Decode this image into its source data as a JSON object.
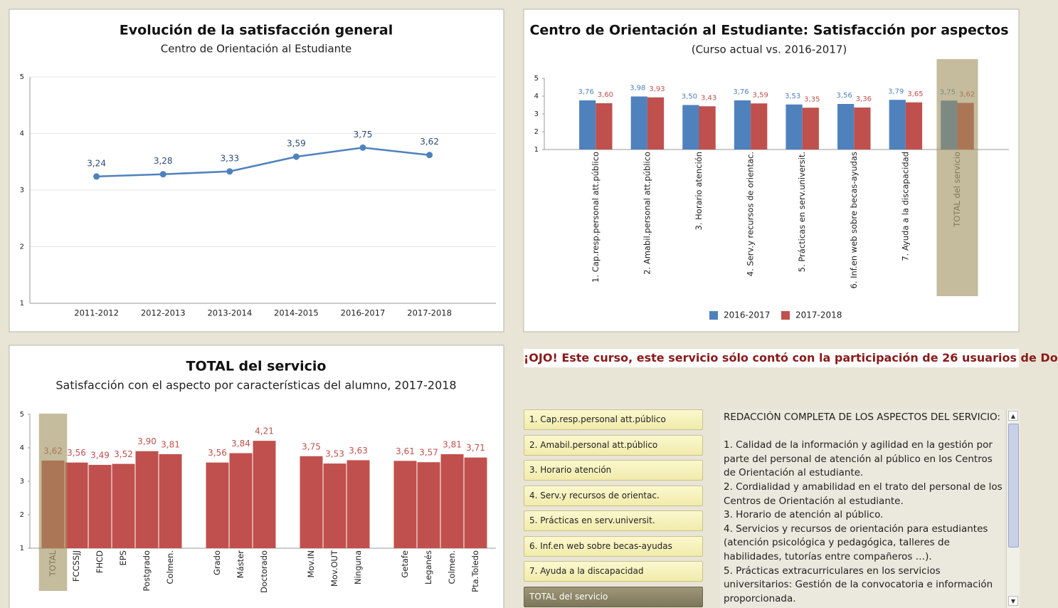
{
  "chart_data": [
    {
      "type": "line",
      "title": "Evolución de la satisfacción general",
      "subtitle": "Centro de Orientación al Estudiante",
      "categories": [
        "2011-2012",
        "2012-2013",
        "2013-2014",
        "2014-2015",
        "2016-2017",
        "2017-2018"
      ],
      "values": [
        3.24,
        3.28,
        3.33,
        3.59,
        3.75,
        3.62
      ],
      "value_labels": [
        "3,24",
        "3,28",
        "3,33",
        "3,59",
        "3,75",
        "3,62"
      ],
      "color": "#4f81bd",
      "ylim": [
        1,
        5
      ],
      "yticks": [
        1,
        2,
        3,
        4,
        5
      ],
      "grid": true
    },
    {
      "type": "bar",
      "title": "Centro de Orientación al Estudiante: Satisfacción por aspectos",
      "subtitle": "(Curso actual vs. 2016-2017)",
      "categories": [
        "1. Cap.resp.personal att.público",
        "2. Amabil.personal att.público",
        "3. Horario atención",
        "4. Serv.y recursos de orientac.",
        "5. Prácticas en serv.universit.",
        "6. Inf.en web sobre becas-ayudas",
        "7. Ayuda a la discapacidad",
        "TOTAL del servicio"
      ],
      "series": [
        {
          "name": "2016-2017",
          "color": "#4f81bd",
          "values": [
            3.76,
            3.98,
            3.5,
            3.76,
            3.53,
            3.56,
            3.79,
            3.75
          ],
          "value_labels": [
            "3,76",
            "3,98",
            "3,50",
            "3,76",
            "3,53",
            "3,56",
            "3,79",
            "3,75"
          ]
        },
        {
          "name": "2017-2018",
          "color": "#c0504d",
          "values": [
            3.6,
            3.93,
            3.43,
            3.59,
            3.35,
            3.36,
            3.65,
            3.62
          ],
          "value_labels": [
            "3,60",
            "3,93",
            "3,43",
            "3,59",
            "3,35",
            "3,36",
            "3,65",
            "3,62"
          ]
        }
      ],
      "ylim": [
        1,
        5
      ],
      "yticks": [
        1,
        2,
        3,
        4,
        5
      ],
      "grid": false,
      "highlight": 7,
      "legend": "bottom"
    },
    {
      "type": "bar",
      "title": "TOTAL del servicio",
      "subtitle": "Satisfacción con el aspecto por características del alumno, 2017-2018",
      "categories": [
        "TOTAL",
        "FCCSSJJ",
        "FHCD",
        "EPS",
        "Postgrado",
        "Colmen.",
        null,
        "Grado",
        "Máster",
        "Doctorado",
        null,
        "Mov.IN",
        "Mov.OUT",
        "Ninguna",
        null,
        "Getafe",
        "Leganés",
        "Colmen.",
        "Pta.Toledo"
      ],
      "values": [
        3.62,
        3.56,
        3.49,
        3.52,
        3.9,
        3.81,
        null,
        3.56,
        3.84,
        4.21,
        null,
        3.75,
        3.53,
        3.63,
        null,
        3.61,
        3.57,
        3.81,
        3.71
      ],
      "value_labels": [
        "3,62",
        "3,56",
        "3,49",
        "3,52",
        "3,90",
        "3,81",
        null,
        "3,56",
        "3,84",
        "4,21",
        null,
        "3,75",
        "3,53",
        "3,63",
        null,
        "3,61",
        "3,57",
        "3,81",
        "3,71"
      ],
      "color": "#c0504d",
      "ylim": [
        1,
        5
      ],
      "yticks": [
        1,
        2,
        3,
        4,
        5
      ],
      "grid": false,
      "highlight": 0
    }
  ],
  "banner": "¡OJO! Este curso, este servicio sólo contó con la participación de 26 usuarios de Do",
  "buttons": [
    "1. Cap.resp.personal att.público",
    "2. Amabil.personal att.público",
    "3. Horario atención",
    "4. Serv.y recursos de orientac.",
    "5. Prácticas en serv.universit.",
    "6. Inf.en web sobre becas-ayudas",
    "7. Ayuda a la discapacidad",
    "TOTAL del servicio"
  ],
  "description": {
    "heading": "REDACCIÓN COMPLETA DE LOS ASPECTOS DEL SERVICIO:",
    "items": [
      "1. Calidad de la información y agilidad en la gestión por parte del personal de atención al público en los Centros de Orientación al estudiante.",
      "2. Cordialidad y amabilidad en el trato del personal de los Centros de Orientación al estudiante.",
      "3. Horario de atención al público.",
      "4. Servicios y recursos de orientación para estudiantes (atención psicológica y pedagógica, talleres de habilidades, tutorías entre compañeros …).",
      "5. Prácticas extracurriculares en los servicios universitarios: Gestión de la convocatoria e información proporcionada."
    ]
  }
}
